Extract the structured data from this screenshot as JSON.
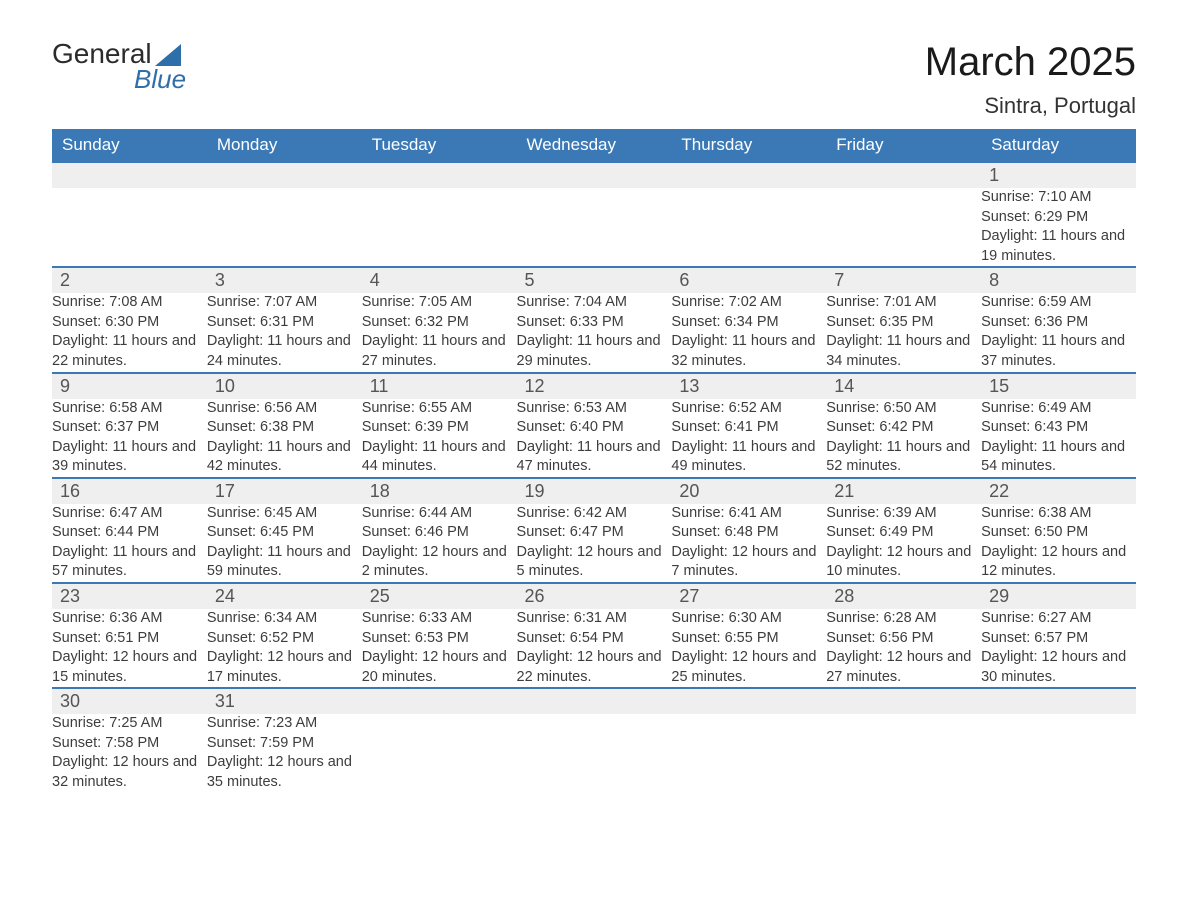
{
  "branding": {
    "name_part1": "General",
    "name_part2": "Blue",
    "logo_color": "#2f6fa9",
    "text_color": "#2b2b2b"
  },
  "header": {
    "month_title": "March 2025",
    "location": "Sintra, Portugal",
    "title_color": "#1a1a1a",
    "title_fontsize": 40,
    "location_fontsize": 22
  },
  "calendar": {
    "header_bg": "#3a79b6",
    "header_text_color": "#ffffff",
    "daynum_bg": "#efefef",
    "row_border_color": "#3a79b6",
    "text_color": "#3d3d3d",
    "day_headers": [
      "Sunday",
      "Monday",
      "Tuesday",
      "Wednesday",
      "Thursday",
      "Friday",
      "Saturday"
    ],
    "weeks": [
      [
        null,
        null,
        null,
        null,
        null,
        null,
        {
          "n": "1",
          "sunrise": "7:10 AM",
          "sunset": "6:29 PM",
          "daylight": "11 hours and 19 minutes."
        }
      ],
      [
        {
          "n": "2",
          "sunrise": "7:08 AM",
          "sunset": "6:30 PM",
          "daylight": "11 hours and 22 minutes."
        },
        {
          "n": "3",
          "sunrise": "7:07 AM",
          "sunset": "6:31 PM",
          "daylight": "11 hours and 24 minutes."
        },
        {
          "n": "4",
          "sunrise": "7:05 AM",
          "sunset": "6:32 PM",
          "daylight": "11 hours and 27 minutes."
        },
        {
          "n": "5",
          "sunrise": "7:04 AM",
          "sunset": "6:33 PM",
          "daylight": "11 hours and 29 minutes."
        },
        {
          "n": "6",
          "sunrise": "7:02 AM",
          "sunset": "6:34 PM",
          "daylight": "11 hours and 32 minutes."
        },
        {
          "n": "7",
          "sunrise": "7:01 AM",
          "sunset": "6:35 PM",
          "daylight": "11 hours and 34 minutes."
        },
        {
          "n": "8",
          "sunrise": "6:59 AM",
          "sunset": "6:36 PM",
          "daylight": "11 hours and 37 minutes."
        }
      ],
      [
        {
          "n": "9",
          "sunrise": "6:58 AM",
          "sunset": "6:37 PM",
          "daylight": "11 hours and 39 minutes."
        },
        {
          "n": "10",
          "sunrise": "6:56 AM",
          "sunset": "6:38 PM",
          "daylight": "11 hours and 42 minutes."
        },
        {
          "n": "11",
          "sunrise": "6:55 AM",
          "sunset": "6:39 PM",
          "daylight": "11 hours and 44 minutes."
        },
        {
          "n": "12",
          "sunrise": "6:53 AM",
          "sunset": "6:40 PM",
          "daylight": "11 hours and 47 minutes."
        },
        {
          "n": "13",
          "sunrise": "6:52 AM",
          "sunset": "6:41 PM",
          "daylight": "11 hours and 49 minutes."
        },
        {
          "n": "14",
          "sunrise": "6:50 AM",
          "sunset": "6:42 PM",
          "daylight": "11 hours and 52 minutes."
        },
        {
          "n": "15",
          "sunrise": "6:49 AM",
          "sunset": "6:43 PM",
          "daylight": "11 hours and 54 minutes."
        }
      ],
      [
        {
          "n": "16",
          "sunrise": "6:47 AM",
          "sunset": "6:44 PM",
          "daylight": "11 hours and 57 minutes."
        },
        {
          "n": "17",
          "sunrise": "6:45 AM",
          "sunset": "6:45 PM",
          "daylight": "11 hours and 59 minutes."
        },
        {
          "n": "18",
          "sunrise": "6:44 AM",
          "sunset": "6:46 PM",
          "daylight": "12 hours and 2 minutes."
        },
        {
          "n": "19",
          "sunrise": "6:42 AM",
          "sunset": "6:47 PM",
          "daylight": "12 hours and 5 minutes."
        },
        {
          "n": "20",
          "sunrise": "6:41 AM",
          "sunset": "6:48 PM",
          "daylight": "12 hours and 7 minutes."
        },
        {
          "n": "21",
          "sunrise": "6:39 AM",
          "sunset": "6:49 PM",
          "daylight": "12 hours and 10 minutes."
        },
        {
          "n": "22",
          "sunrise": "6:38 AM",
          "sunset": "6:50 PM",
          "daylight": "12 hours and 12 minutes."
        }
      ],
      [
        {
          "n": "23",
          "sunrise": "6:36 AM",
          "sunset": "6:51 PM",
          "daylight": "12 hours and 15 minutes."
        },
        {
          "n": "24",
          "sunrise": "6:34 AM",
          "sunset": "6:52 PM",
          "daylight": "12 hours and 17 minutes."
        },
        {
          "n": "25",
          "sunrise": "6:33 AM",
          "sunset": "6:53 PM",
          "daylight": "12 hours and 20 minutes."
        },
        {
          "n": "26",
          "sunrise": "6:31 AM",
          "sunset": "6:54 PM",
          "daylight": "12 hours and 22 minutes."
        },
        {
          "n": "27",
          "sunrise": "6:30 AM",
          "sunset": "6:55 PM",
          "daylight": "12 hours and 25 minutes."
        },
        {
          "n": "28",
          "sunrise": "6:28 AM",
          "sunset": "6:56 PM",
          "daylight": "12 hours and 27 minutes."
        },
        {
          "n": "29",
          "sunrise": "6:27 AM",
          "sunset": "6:57 PM",
          "daylight": "12 hours and 30 minutes."
        }
      ],
      [
        {
          "n": "30",
          "sunrise": "7:25 AM",
          "sunset": "7:58 PM",
          "daylight": "12 hours and 32 minutes."
        },
        {
          "n": "31",
          "sunrise": "7:23 AM",
          "sunset": "7:59 PM",
          "daylight": "12 hours and 35 minutes."
        },
        null,
        null,
        null,
        null,
        null
      ]
    ],
    "labels": {
      "sunrise_prefix": "Sunrise: ",
      "sunset_prefix": "Sunset: ",
      "daylight_prefix": "Daylight: "
    }
  }
}
